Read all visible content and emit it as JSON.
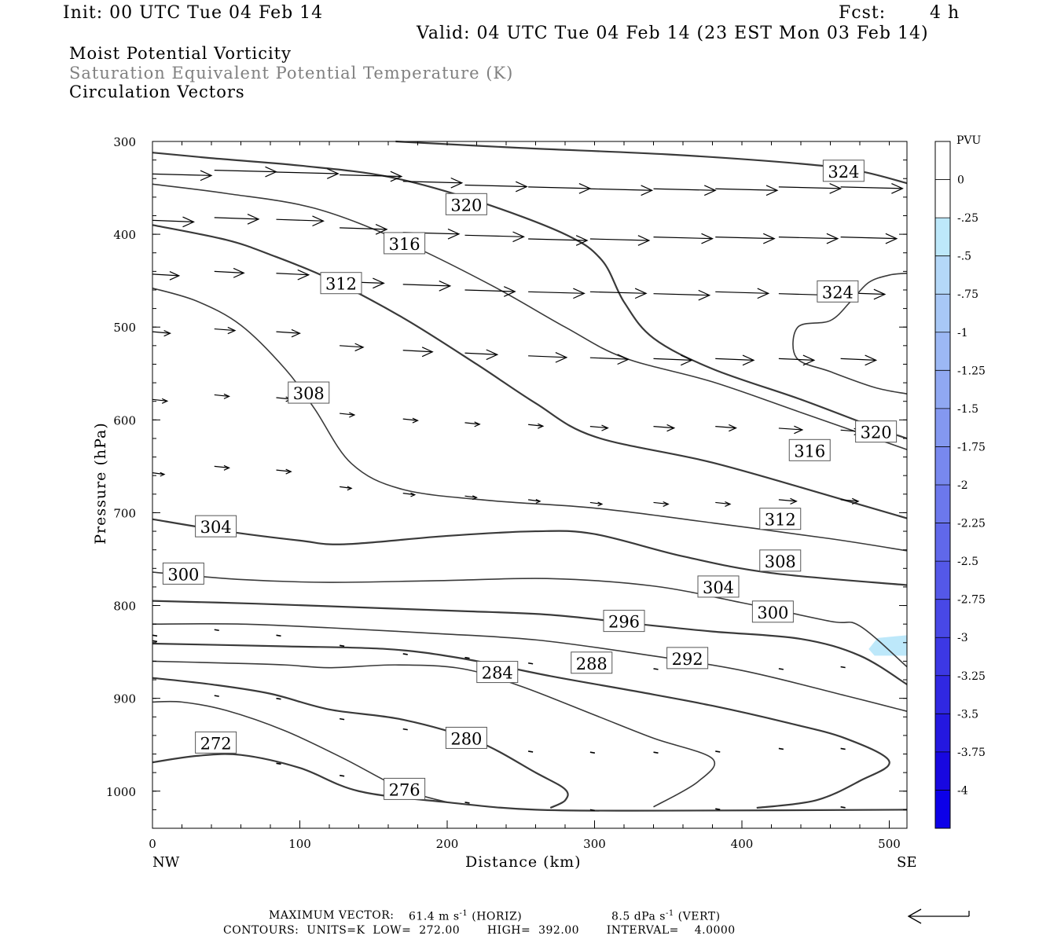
{
  "header": {
    "init": "Init: 00 UTC Tue 04 Feb 14",
    "fcst_label": "Fcst:",
    "fcst_value": "4 h",
    "valid": "Valid: 04 UTC Tue 04 Feb 14 (23 EST Mon 03 Feb 14)"
  },
  "titles": {
    "line1": "Moist Potential Vorticity",
    "line2": "Saturation Equivalent Potential Temperature (K)",
    "line3": "Circulation Vectors"
  },
  "footer": {
    "max_vector_label": "MAXIMUM VECTOR:",
    "max_vector_horiz": "61.4 m s",
    "horiz_tag": "(HORIZ)",
    "max_vector_vert": "8.5 dPa s",
    "vert_tag": "(VERT)",
    "exp": "-1",
    "contours": "CONTOURS:  UNITS=K  LOW=  272.00       HIGH=  392.00       INTERVAL=    4.0000"
  },
  "colors": {
    "contour": "#3a3a3a",
    "shade_light": "#bde8fa",
    "colorbar": [
      "#ffffff",
      "#ffffff",
      "#bde8fa",
      "#b4d8f8",
      "#a8c8f6",
      "#9cb8f4",
      "#90a8f2",
      "#8498f0",
      "#7888ee",
      "#6c78ec",
      "#6068ea",
      "#5458e8",
      "#4848e6",
      "#3c38e4",
      "#3028e2",
      "#2418e0",
      "#1808e0",
      "#0c00e8"
    ]
  },
  "chart_data": {
    "type": "contour",
    "xlabel": "Distance (km)",
    "ylabel": "Pressure (hPa)",
    "x_range": [
      0,
      512
    ],
    "y_range": [
      300,
      1040
    ],
    "x_ticks": [
      0,
      100,
      200,
      300,
      400,
      500
    ],
    "y_ticks": [
      300,
      400,
      500,
      600,
      700,
      800,
      900,
      1000
    ],
    "x_endpoints": {
      "left": "NW",
      "right": "SE"
    },
    "colorbar": {
      "unit": "PVU",
      "labels": [
        "0",
        "-.25",
        "-.5",
        "-.75",
        "-1",
        "-1.25",
        "-1.5",
        "-1.75",
        "-2",
        "-2.25",
        "-2.5",
        "-2.75",
        "-3",
        "-3.25",
        "-3.5",
        "-3.75",
        "-4"
      ],
      "range": [
        0.5,
        -4.5
      ]
    },
    "shaded_regions": [
      {
        "value_pvu": -0.25,
        "points": [
          [
            486,
            847
          ],
          [
            492,
            835
          ],
          [
            512,
            832
          ],
          [
            512,
            854
          ],
          [
            490,
            854
          ]
        ]
      }
    ],
    "contour_interval": 4,
    "contours": [
      {
        "level": 324,
        "labels": [
          [
            469,
            332
          ],
          [
            465,
            462
          ]
        ],
        "points": [
          [
            165,
            300
          ],
          [
            250,
            307
          ],
          [
            350,
            314
          ],
          [
            440,
            324
          ],
          [
            480,
            332
          ],
          [
            512,
            345
          ]
        ]
      },
      {
        "level": 324,
        "points": [
          [
            512,
            442
          ],
          [
            500,
            444
          ],
          [
            486,
            452
          ],
          [
            474,
            472
          ],
          [
            460,
            493
          ],
          [
            438,
            500
          ],
          [
            437,
            533
          ],
          [
            460,
            548
          ],
          [
            490,
            565
          ],
          [
            512,
            572
          ]
        ]
      },
      {
        "level": 320,
        "labels": [
          [
            213,
            368
          ],
          [
            491,
            613
          ]
        ],
        "points": [
          [
            0,
            312
          ],
          [
            40,
            318
          ],
          [
            100,
            326
          ],
          [
            160,
            338
          ],
          [
            220,
            364
          ],
          [
            280,
            400
          ],
          [
            305,
            428
          ],
          [
            320,
            473
          ],
          [
            340,
            512
          ],
          [
            380,
            545
          ],
          [
            440,
            578
          ],
          [
            490,
            608
          ],
          [
            512,
            620
          ]
        ]
      },
      {
        "level": 316,
        "labels": [
          [
            171,
            410
          ],
          [
            446,
            633
          ]
        ],
        "points": [
          [
            0,
            346
          ],
          [
            50,
            356
          ],
          [
            110,
            372
          ],
          [
            170,
            408
          ],
          [
            230,
            455
          ],
          [
            280,
            500
          ],
          [
            320,
            533
          ],
          [
            380,
            559
          ],
          [
            440,
            592
          ],
          [
            512,
            632
          ]
        ]
      },
      {
        "level": 312,
        "labels": [
          [
            128,
            453
          ],
          [
            426,
            707
          ]
        ],
        "points": [
          [
            0,
            390
          ],
          [
            50,
            406
          ],
          [
            80,
            422
          ],
          [
            120,
            448
          ],
          [
            170,
            490
          ],
          [
            220,
            540
          ],
          [
            260,
            582
          ],
          [
            300,
            618
          ],
          [
            380,
            646
          ],
          [
            460,
            682
          ],
          [
            512,
            706
          ]
        ]
      },
      {
        "level": 308,
        "labels": [
          [
            106,
            571
          ],
          [
            426,
            752
          ]
        ],
        "points": [
          [
            0,
            458
          ],
          [
            30,
            472
          ],
          [
            60,
            498
          ],
          [
            90,
            545
          ],
          [
            110,
            588
          ],
          [
            135,
            647
          ],
          [
            170,
            675
          ],
          [
            230,
            687
          ],
          [
            300,
            695
          ],
          [
            380,
            711
          ],
          [
            460,
            728
          ],
          [
            512,
            741
          ]
        ]
      },
      {
        "level": 304,
        "labels": [
          [
            43,
            715
          ],
          [
            384,
            780
          ]
        ],
        "points": [
          [
            0,
            707
          ],
          [
            50,
            720
          ],
          [
            100,
            730
          ],
          [
            130,
            734
          ],
          [
            200,
            725
          ],
          [
            260,
            720
          ],
          [
            300,
            723
          ],
          [
            360,
            747
          ],
          [
            420,
            765
          ],
          [
            512,
            778
          ]
        ]
      },
      {
        "level": 300,
        "labels": [
          [
            21,
            766
          ],
          [
            421,
            807
          ]
        ],
        "points": [
          [
            0,
            764
          ],
          [
            60,
            772
          ],
          [
            120,
            775
          ],
          [
            200,
            773
          ],
          [
            270,
            771
          ],
          [
            340,
            779
          ],
          [
            400,
            797
          ],
          [
            460,
            817
          ],
          [
            480,
            822
          ],
          [
            512,
            866
          ]
        ]
      },
      {
        "level": 296,
        "labels": [
          [
            320,
            817
          ]
        ],
        "points": [
          [
            0,
            795
          ],
          [
            70,
            798
          ],
          [
            140,
            802
          ],
          [
            210,
            806
          ],
          [
            270,
            810
          ],
          [
            330,
            820
          ],
          [
            380,
            828
          ],
          [
            440,
            836
          ],
          [
            480,
            854
          ],
          [
            512,
            885
          ]
        ]
      },
      {
        "level": 292,
        "labels": [
          [
            363,
            857
          ]
        ],
        "points": [
          [
            0,
            820
          ],
          [
            60,
            820
          ],
          [
            120,
            824
          ],
          [
            190,
            830
          ],
          [
            260,
            837
          ],
          [
            330,
            852
          ],
          [
            400,
            870
          ],
          [
            470,
            897
          ],
          [
            512,
            914
          ]
        ]
      },
      {
        "level": 288,
        "labels": [
          [
            298,
            862
          ]
        ],
        "points": [
          [
            0,
            841
          ],
          [
            90,
            844
          ],
          [
            160,
            847
          ],
          [
            210,
            857
          ],
          [
            270,
            876
          ],
          [
            330,
            893
          ],
          [
            380,
            908
          ],
          [
            430,
            926
          ],
          [
            470,
            943
          ],
          [
            500,
            968
          ],
          [
            480,
            989
          ],
          [
            450,
            1010
          ],
          [
            410,
            1018
          ]
        ]
      },
      {
        "level": 284,
        "labels": [
          [
            234,
            872
          ]
        ],
        "points": [
          [
            0,
            860
          ],
          [
            50,
            862
          ],
          [
            90,
            864
          ],
          [
            120,
            867
          ],
          [
            165,
            864
          ],
          [
            210,
            868
          ],
          [
            250,
            887
          ],
          [
            300,
            918
          ],
          [
            340,
            943
          ],
          [
            380,
            965
          ],
          [
            370,
            990
          ],
          [
            340,
            1017
          ]
        ]
      },
      {
        "level": 280,
        "labels": [
          [
            213,
            943
          ]
        ],
        "points": [
          [
            0,
            878
          ],
          [
            40,
            885
          ],
          [
            80,
            895
          ],
          [
            120,
            912
          ],
          [
            170,
            923
          ],
          [
            220,
            946
          ],
          [
            260,
            980
          ],
          [
            280,
            998
          ],
          [
            280,
            1010
          ],
          [
            270,
            1018
          ]
        ]
      },
      {
        "level": 276,
        "labels": [
          [
            171,
            998
          ]
        ],
        "points": [
          [
            0,
            904
          ],
          [
            20,
            904
          ],
          [
            50,
            913
          ],
          [
            90,
            935
          ],
          [
            130,
            965
          ],
          [
            170,
            998
          ],
          [
            200,
            1012
          ]
        ]
      },
      {
        "level": 272,
        "labels": [
          [
            43,
            948
          ]
        ],
        "points": [
          [
            0,
            969
          ],
          [
            30,
            962
          ],
          [
            60,
            961
          ],
          [
            100,
            975
          ],
          [
            140,
            1000
          ],
          [
            200,
            1012
          ],
          [
            260,
            1020
          ],
          [
            350,
            1021
          ],
          [
            512,
            1020
          ]
        ]
      }
    ],
    "vectors": {
      "note": "horizontal circulation vectors along rows; [x_km, pressure_hPa, length_km]",
      "rows": [
        [
          [
            0,
            335,
            40
          ],
          [
            42,
            331,
            42
          ],
          [
            84,
            333,
            42
          ],
          [
            127,
            336,
            42
          ],
          [
            170,
            343,
            40
          ],
          [
            212,
            347,
            42
          ],
          [
            255,
            349,
            42
          ],
          [
            297,
            351,
            42
          ],
          [
            340,
            351,
            42
          ],
          [
            382,
            351,
            42
          ],
          [
            425,
            349,
            42
          ],
          [
            467,
            349,
            42
          ]
        ],
        [
          [
            0,
            385,
            28
          ],
          [
            42,
            382,
            30
          ],
          [
            84,
            384,
            32
          ],
          [
            127,
            393,
            32
          ],
          [
            170,
            398,
            38
          ],
          [
            212,
            401,
            40
          ],
          [
            255,
            405,
            40
          ],
          [
            297,
            405,
            40
          ],
          [
            340,
            403,
            40
          ],
          [
            382,
            403,
            40
          ],
          [
            425,
            403,
            40
          ],
          [
            467,
            403,
            38
          ]
        ],
        [
          [
            0,
            443,
            18
          ],
          [
            42,
            440,
            20
          ],
          [
            84,
            442,
            22
          ],
          [
            127,
            451,
            30
          ],
          [
            170,
            454,
            32
          ],
          [
            212,
            460,
            34
          ],
          [
            255,
            462,
            38
          ],
          [
            297,
            462,
            38
          ],
          [
            340,
            464,
            38
          ],
          [
            382,
            462,
            36
          ],
          [
            425,
            464,
            36
          ],
          [
            467,
            463,
            30
          ]
        ],
        [
          [
            0,
            505,
            12
          ],
          [
            42,
            502,
            14
          ],
          [
            84,
            505,
            16
          ],
          [
            127,
            520,
            16
          ],
          [
            170,
            525,
            20
          ],
          [
            212,
            528,
            22
          ],
          [
            255,
            531,
            26
          ],
          [
            297,
            533,
            26
          ],
          [
            340,
            534,
            26
          ],
          [
            382,
            534,
            26
          ],
          [
            425,
            534,
            24
          ],
          [
            467,
            534,
            24
          ]
        ],
        [
          [
            0,
            578,
            10
          ],
          [
            42,
            573,
            10
          ],
          [
            84,
            576,
            10
          ],
          [
            127,
            593,
            10
          ],
          [
            170,
            599,
            10
          ],
          [
            212,
            603,
            10
          ],
          [
            255,
            605,
            10
          ],
          [
            297,
            607,
            12
          ],
          [
            340,
            607,
            14
          ],
          [
            382,
            607,
            14
          ],
          [
            425,
            609,
            16
          ],
          [
            467,
            611,
            14
          ]
        ],
        [
          [
            0,
            657,
            8
          ],
          [
            42,
            650,
            10
          ],
          [
            84,
            654,
            10
          ],
          [
            127,
            672,
            8
          ],
          [
            170,
            679,
            8
          ],
          [
            212,
            682,
            8
          ],
          [
            255,
            686,
            8
          ],
          [
            297,
            689,
            8
          ],
          [
            340,
            689,
            10
          ],
          [
            382,
            689,
            10
          ],
          [
            425,
            686,
            12
          ],
          [
            467,
            686,
            12
          ]
        ]
      ]
    }
  }
}
